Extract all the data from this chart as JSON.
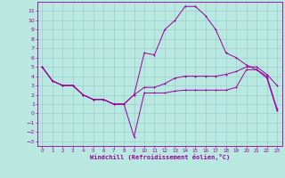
{
  "background_color": "#b8e8e0",
  "grid_color": "#9ecece",
  "line_color": "#990099",
  "xlabel": "Windchill (Refroidissement éolien,°C)",
  "xlim": [
    -0.5,
    23.5
  ],
  "ylim": [
    -3.5,
    12
  ],
  "xticks": [
    0,
    1,
    2,
    3,
    4,
    5,
    6,
    7,
    8,
    9,
    10,
    11,
    12,
    13,
    14,
    15,
    16,
    17,
    18,
    19,
    20,
    21,
    22,
    23
  ],
  "yticks": [
    -3,
    -2,
    -1,
    0,
    1,
    2,
    3,
    4,
    5,
    6,
    7,
    8,
    9,
    10,
    11
  ],
  "series1_x": [
    0,
    1,
    2,
    3,
    4,
    5,
    6,
    7,
    8,
    9,
    10,
    11,
    12,
    13,
    14,
    15,
    16,
    17,
    18,
    19,
    20,
    21,
    22,
    23
  ],
  "series1_y": [
    5,
    3.5,
    3,
    3,
    2,
    1.5,
    1.5,
    1,
    1,
    -2.5,
    2.2,
    2.2,
    2.2,
    2.4,
    2.5,
    2.5,
    2.5,
    2.5,
    2.5,
    2.8,
    4.7,
    4.7,
    3.8,
    0.3
  ],
  "series2_x": [
    0,
    1,
    2,
    3,
    4,
    5,
    6,
    7,
    8,
    9,
    10,
    11,
    12,
    13,
    14,
    15,
    16,
    17,
    18,
    19,
    20,
    21,
    22,
    23
  ],
  "series2_y": [
    5,
    3.5,
    3,
    3,
    2,
    1.5,
    1.5,
    1,
    1,
    2,
    6.5,
    6.3,
    9,
    10,
    11.5,
    11.5,
    10.5,
    9,
    6.5,
    6,
    5.2,
    4.7,
    4,
    0.5
  ],
  "series3_x": [
    0,
    1,
    2,
    3,
    4,
    5,
    6,
    7,
    8,
    9,
    10,
    11,
    12,
    13,
    14,
    15,
    16,
    17,
    18,
    19,
    20,
    21,
    22,
    23
  ],
  "series3_y": [
    5,
    3.5,
    3,
    3,
    2,
    1.5,
    1.5,
    1,
    1,
    2,
    2.8,
    2.8,
    3.2,
    3.8,
    4.0,
    4.0,
    4.0,
    4.0,
    4.2,
    4.5,
    5.0,
    5.0,
    4.2,
    3.0
  ]
}
